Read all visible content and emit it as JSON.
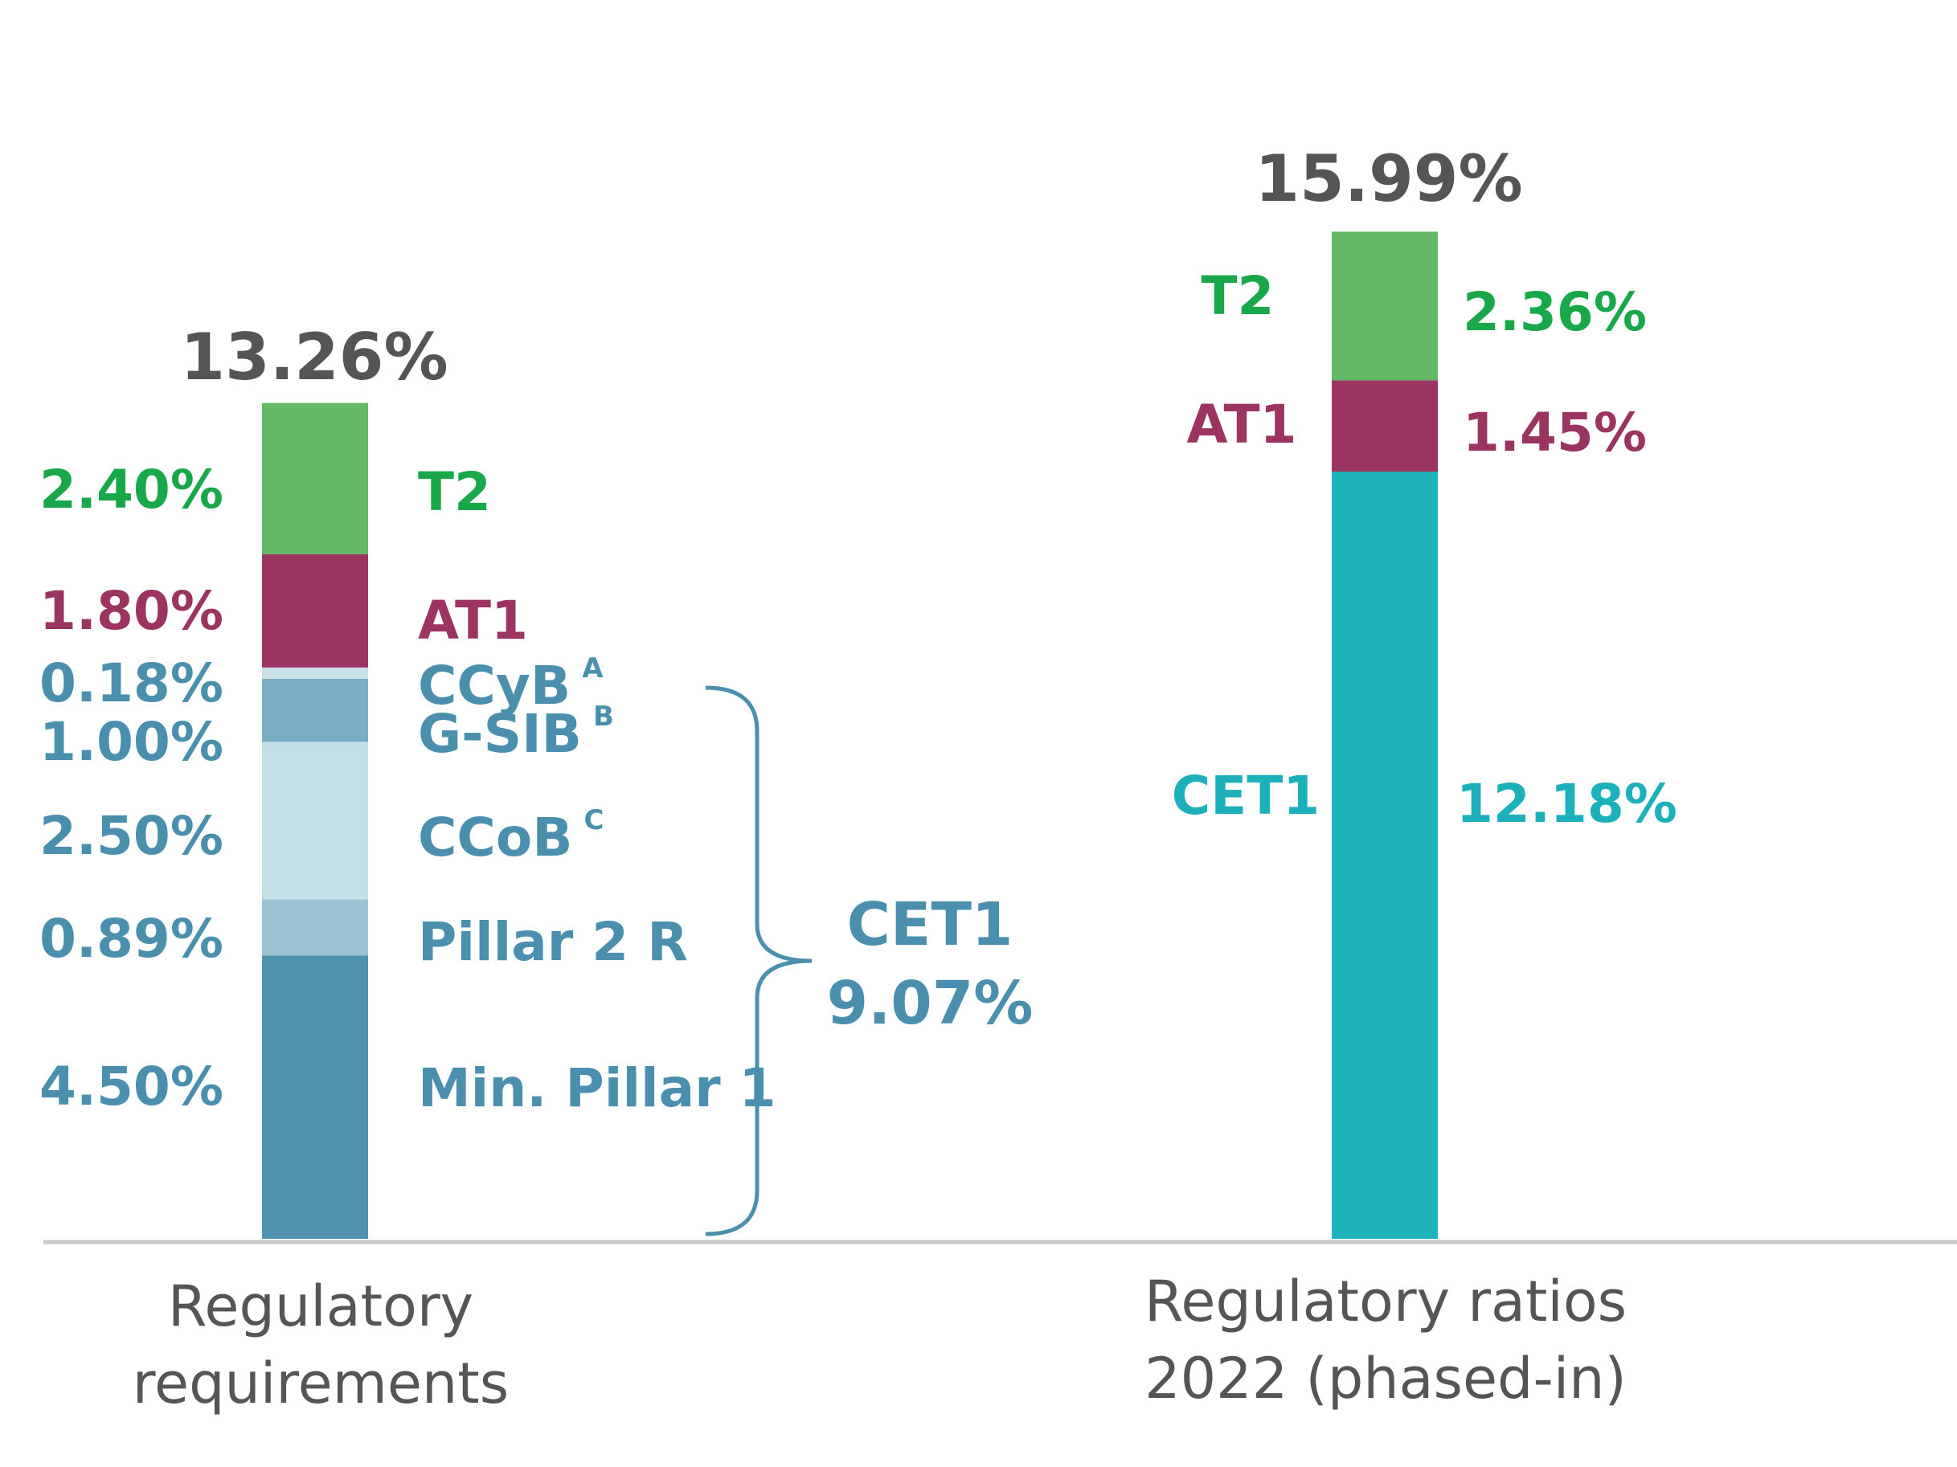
{
  "chart_data": {
    "type": "bar",
    "stacked": true,
    "categories": [
      "Regulatory requirements",
      "Regulatory ratios 2022 (phased-in)"
    ],
    "category_labels": [
      [
        "Regulatory",
        "requirements"
      ],
      [
        "Regulatory ratios",
        "2022 (phased-in)"
      ]
    ],
    "totals": [
      "13.26%",
      "15.99%"
    ],
    "ylim": [
      0,
      16
    ],
    "grid": false,
    "legend": "none",
    "bars": [
      {
        "segments": [
          {
            "name": "Min. Pillar 1",
            "value": 4.5,
            "label": "4.50%",
            "color": "#4f93b0",
            "text_color": "#4a8fae"
          },
          {
            "name": "Pillar 2 R",
            "value": 0.89,
            "label": "0.89%",
            "color": "#9dc3d5",
            "text_color": "#4a8fae"
          },
          {
            "name": "CCoB",
            "sup": "C",
            "value": 2.5,
            "label": "2.50%",
            "color": "#c5e0e8",
            "text_color": "#4a8fae"
          },
          {
            "name": "G-SIB",
            "sup": "B",
            "value": 1.0,
            "label": "1.00%",
            "color": "#79aec4",
            "text_color": "#4a8fae"
          },
          {
            "name": "CCyB",
            "sup": "A",
            "value": 0.18,
            "label": "0.18%",
            "color": "#c9e0e8",
            "text_color": "#4a8fae"
          },
          {
            "name": "AT1",
            "value": 1.8,
            "label": "1.80%",
            "color": "#9c3461",
            "text_color": "#9c3461"
          },
          {
            "name": "T2",
            "value": 2.4,
            "label": "2.40%",
            "color": "#64b967",
            "text_color": "#18a84a"
          }
        ]
      },
      {
        "segments": [
          {
            "name": "CET1",
            "value": 12.18,
            "label": "12.18%",
            "color": "#1db3bd",
            "text_color": "#1bb0ba"
          },
          {
            "name": "AT1",
            "value": 1.45,
            "label": "1.45%",
            "color": "#9c3461",
            "text_color": "#9c3461"
          },
          {
            "name": "T2",
            "value": 2.36,
            "label": "2.36%",
            "color": "#64b967",
            "text_color": "#18a84a"
          }
        ]
      }
    ],
    "annotations": [
      {
        "name": "CET1",
        "label": "9.07%",
        "color": "#4a8fae"
      }
    ],
    "total_color": "#555555",
    "axis_color": "#c8c8c8"
  }
}
